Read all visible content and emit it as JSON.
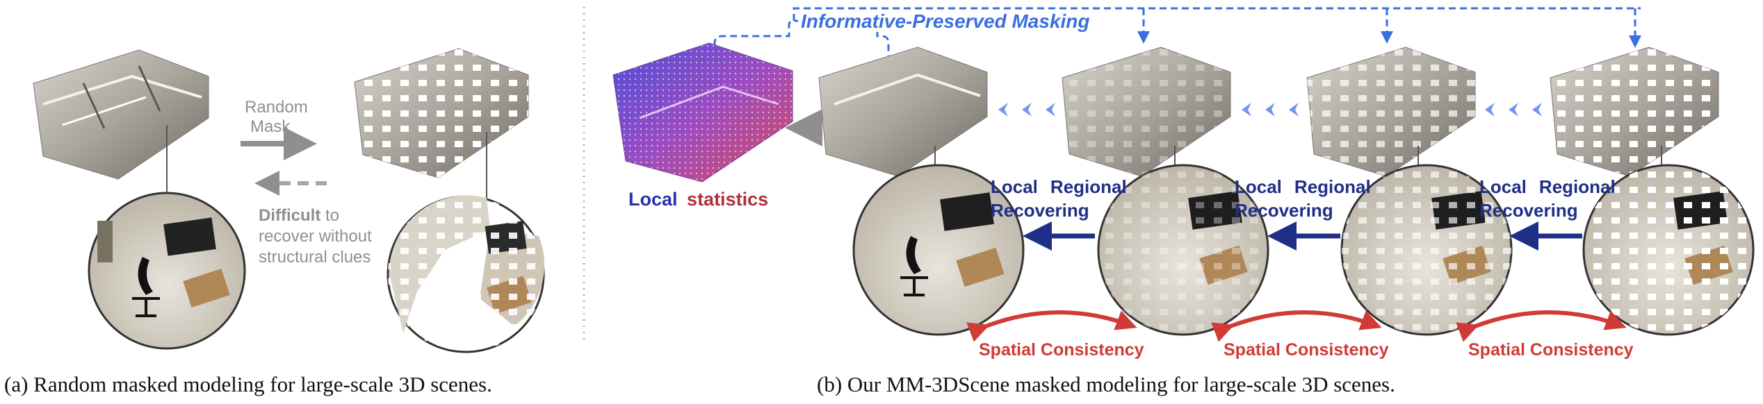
{
  "left_panel": {
    "random_mask_line1": "Random",
    "random_mask_line2": "Mask",
    "difficult_bold": "Difficult",
    "difficult_rest": " to",
    "recover_line2": "recover without",
    "recover_line3": "structural clues"
  },
  "right_panel": {
    "ipm_label": "Informative-Preserved Masking",
    "local_statistics": {
      "word1": "Local",
      "word2": "statistics"
    },
    "local_regional": [
      "Local",
      "Regional"
    ],
    "recovering": "Recovering",
    "spatial_consistency": "Spatial Consistency"
  },
  "captions": {
    "left": "(a) Random masked modeling for large-scale 3D scenes.",
    "right": "(b) Our MM-3DScene masked modeling for large-scale 3D scenes."
  },
  "colors": {
    "gray_text": "#8f8f8f",
    "blue_dark": "#1f2f88",
    "blue_light": "#3a6fe0",
    "red": "#d03b35",
    "chevron": "#6f97ee"
  }
}
